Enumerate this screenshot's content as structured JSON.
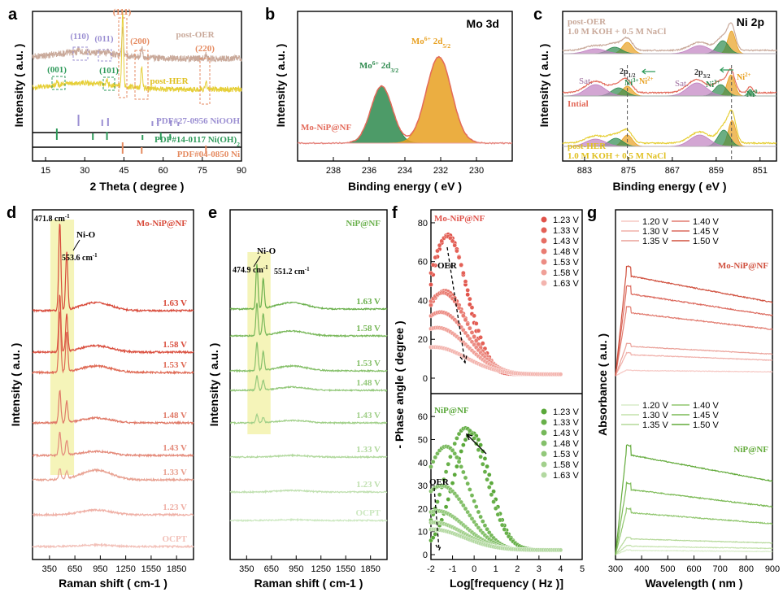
{
  "chart_data": [
    {
      "panel": "a",
      "type": "line",
      "xlabel": "2 Theta ( degree )",
      "ylabel": "Intensity ( a.u. )",
      "xlim": [
        10,
        90
      ],
      "xticks": [
        15,
        30,
        45,
        60,
        75,
        90
      ],
      "series": [
        {
          "name": "post-OER",
          "color": "#c9a99a"
        },
        {
          "name": "post-HER",
          "color": "#e6cf38"
        }
      ],
      "references": [
        {
          "name": "PDF#27-0956 NiOOH",
          "color": "#9b8fd2",
          "peaks": [
            27.6,
            36.7,
            38.9,
            55.9,
            58.0,
            63.0,
            65.8
          ]
        },
        {
          "name": "PDF#14-0117 Ni(OH)2",
          "color": "#2e9a5a",
          "peaks": [
            19.3,
            33.1,
            38.5,
            52.1,
            59.1,
            62.7
          ]
        },
        {
          "name": "PDF#04-0850 Ni",
          "color": "#e58a60",
          "peaks": [
            44.5,
            51.8,
            76.4
          ]
        }
      ],
      "peak_labels": [
        "(110)",
        "(011)",
        "(111)",
        "(200)",
        "(220)",
        "(001)",
        "(101)"
      ]
    },
    {
      "panel": "b",
      "type": "line",
      "title": "Mo 3d",
      "xlabel": "Binding energy ( eV )",
      "ylabel": "Intensity ( a.u. )",
      "xlim": [
        240,
        228
      ],
      "xticks": [
        238,
        236,
        234,
        232,
        230
      ],
      "sample": "Mo-NiP@NF",
      "peaks": [
        {
          "label": "Mo6+ 2d3/2",
          "center": 235.3,
          "color": "#2e8a4e"
        },
        {
          "label": "Mo6+ 2d5/2",
          "center": 232.1,
          "color": "#e8a020"
        }
      ]
    },
    {
      "panel": "c",
      "type": "line",
      "title": "Ni 2p",
      "xlabel": "Binding energy ( eV )",
      "ylabel": "Intensity ( a.u. )",
      "xlim": [
        887,
        848
      ],
      "xticks": [
        883,
        875,
        867,
        859,
        851
      ],
      "spectra": [
        "post-OER",
        "Intial",
        "post-HER"
      ],
      "electrolyte": "1.0 M KOH + 0.5 M NaCl",
      "labels": [
        "Sat.",
        "Ni3+",
        "Ni2+",
        "Ni0",
        "2p1/2",
        "2p3/2"
      ]
    },
    {
      "panel": "d",
      "type": "line",
      "sample": "Mo-NiP@NF",
      "xlabel": "Raman shift ( cm-1 )",
      "ylabel": "Intensity ( a.u. )",
      "xlim": [
        150,
        2050
      ],
      "xticks": [
        350,
        650,
        950,
        1250,
        1550,
        1850
      ],
      "peaks": [
        471.8,
        553.6
      ],
      "band": "Ni-O",
      "potentials": [
        "1.63 V",
        "1.58 V",
        "1.53 V",
        "1.48 V",
        "1.43 V",
        "1.33 V",
        "1.23 V",
        "OCPT"
      ]
    },
    {
      "panel": "e",
      "type": "line",
      "sample": "NiP@NF",
      "xlabel": "Raman shift ( cm-1 )",
      "ylabel": "Intensity ( a.u. )",
      "xlim": [
        150,
        2050
      ],
      "xticks": [
        350,
        650,
        950,
        1250,
        1550,
        1850
      ],
      "peaks": [
        474.9,
        551.2
      ],
      "band": "Ni-O",
      "potentials": [
        "1.63 V",
        "1.58 V",
        "1.53 V",
        "1.48 V",
        "1.43 V",
        "1.33 V",
        "1.23 V",
        "OCPT"
      ]
    },
    {
      "panel": "f",
      "type": "scatter",
      "xlabel": "Log[frequency ( Hz )]",
      "ylabel": "- Phase angle ( degree )",
      "xlim": [
        -2,
        5
      ],
      "xticks": [
        -2,
        -1,
        0,
        1,
        2,
        3,
        4,
        5
      ],
      "subplots": [
        {
          "sample": "Mo-NiP@NF",
          "ylim": [
            0,
            85
          ],
          "yticks": [
            0,
            20,
            40,
            60,
            80
          ],
          "potentials": [
            "1.23 V",
            "1.33 V",
            "1.43 V",
            "1.48 V",
            "1.53 V",
            "1.58 V",
            "1.63 V"
          ],
          "peak_log_f": [
            -1.2,
            -1.25,
            -1.35,
            -1.45,
            -1.55,
            -1.7,
            -1.85
          ],
          "peak_angle": [
            74,
            73,
            45,
            44,
            34,
            26,
            16
          ]
        },
        {
          "sample": "NiP@NF",
          "ylim": [
            0,
            65
          ],
          "yticks": [
            0,
            10,
            20,
            30,
            40,
            50,
            60
          ],
          "potentials": [
            "1.23 V",
            "1.33 V",
            "1.43 V",
            "1.48 V",
            "1.53 V",
            "1.58 V",
            "1.63 V"
          ],
          "peak_log_f": [
            -0.1,
            -0.4,
            -1.3,
            -1.5,
            -1.7,
            -1.85,
            -1.95
          ],
          "peak_angle": [
            53,
            55,
            47,
            30,
            19,
            14,
            11
          ]
        }
      ],
      "annotation": "OER"
    },
    {
      "panel": "g",
      "type": "line",
      "xlabel": "Wavelength ( nm )",
      "ylabel": "Absorbance ( a.u. )",
      "xlim": [
        300,
        900
      ],
      "xticks": [
        300,
        400,
        500,
        600,
        700,
        800,
        900
      ],
      "subplots": [
        {
          "sample": "Mo-NiP@NF",
          "potentials": [
            "1.20 V",
            "1.30 V",
            "1.35 V",
            "1.40 V",
            "1.45 V",
            "1.50 V"
          ]
        },
        {
          "sample": "NiP@NF",
          "potentials": [
            "1.20 V",
            "1.30 V",
            "1.35 V",
            "1.40 V",
            "1.45 V",
            "1.50 V"
          ]
        }
      ]
    }
  ]
}
